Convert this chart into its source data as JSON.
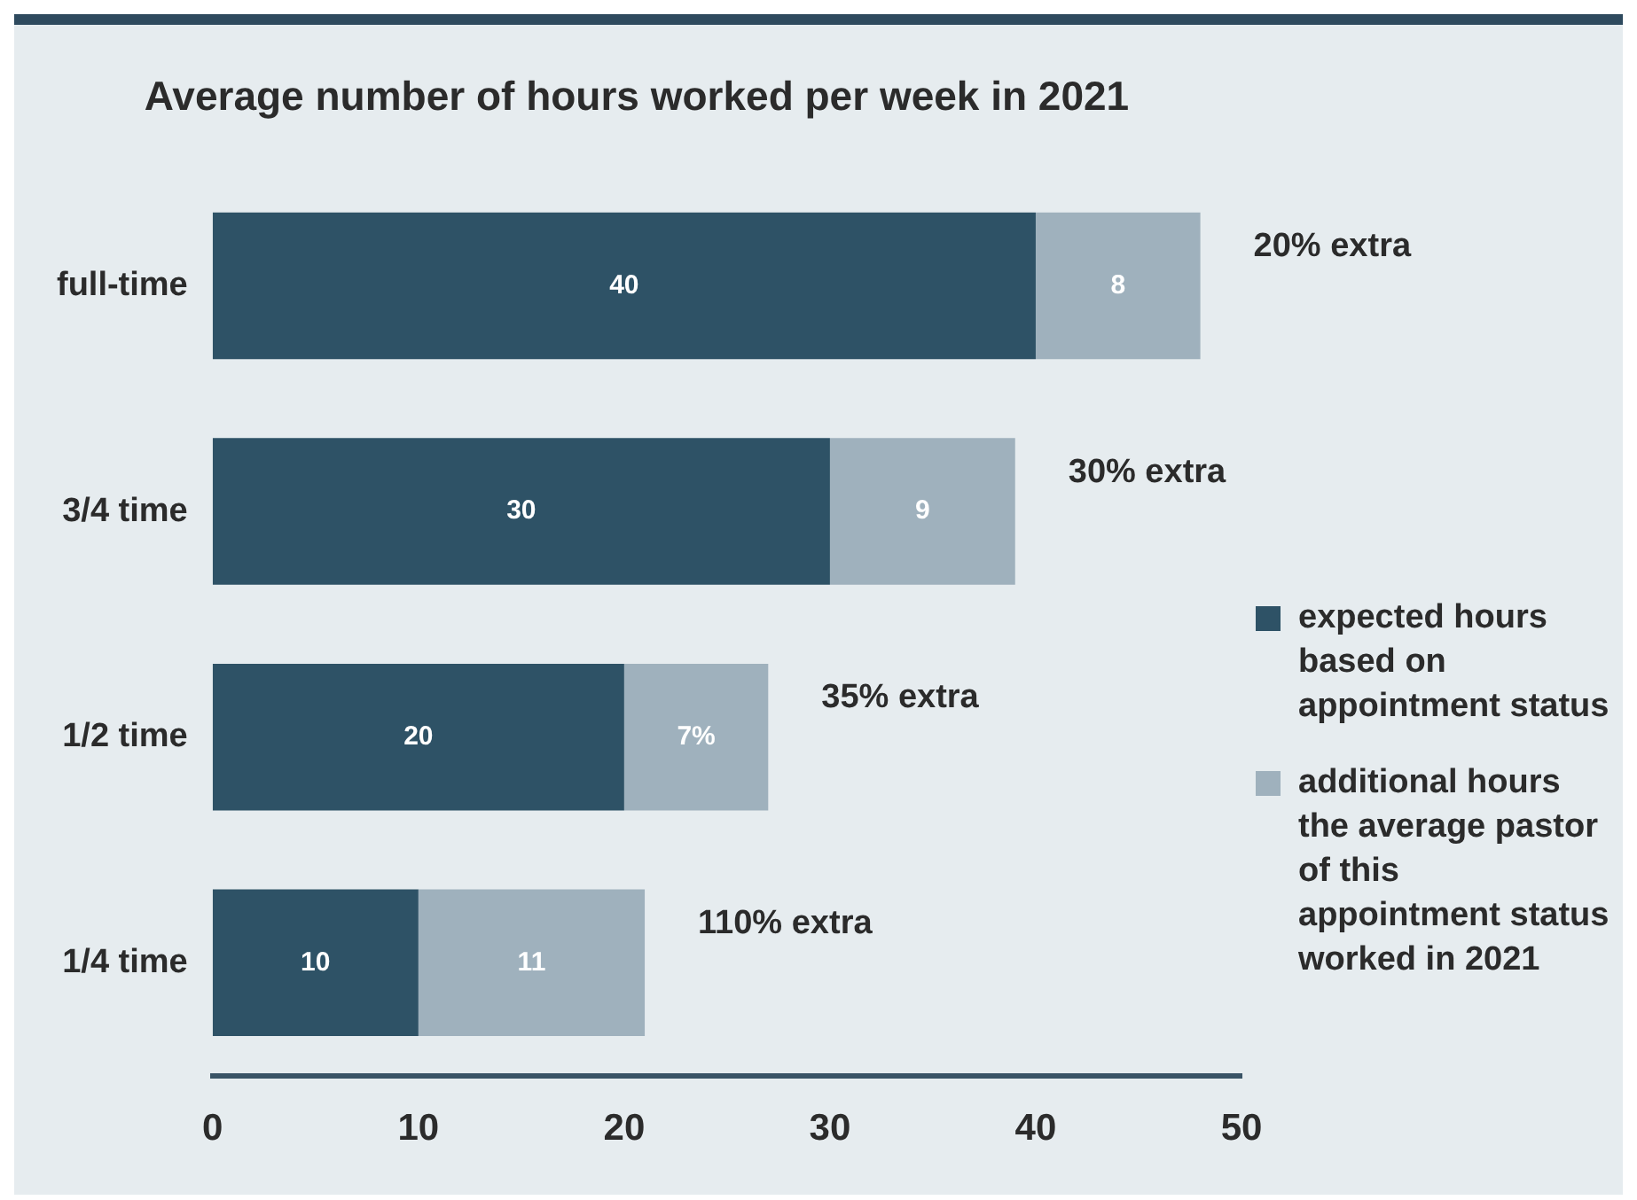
{
  "chart_data": {
    "type": "bar",
    "orientation": "horizontal",
    "stacked": true,
    "title": "Average number of hours worked per week in 2021",
    "categories": [
      "full-time",
      "3/4 time",
      "1/2 time",
      "1/4 time"
    ],
    "series": [
      {
        "name": "expected hours based on appointment status",
        "color": "#2e5266",
        "values": [
          40,
          30,
          20,
          10
        ],
        "value_labels": [
          "40",
          "30",
          "20",
          "10"
        ]
      },
      {
        "name": "additional hours the average pastor of this appointment status worked in 2021",
        "color": "#9fb1bd",
        "values": [
          8,
          9,
          7,
          11
        ],
        "value_labels": [
          "8",
          "9",
          "7%",
          "11"
        ]
      }
    ],
    "xlim": [
      0,
      50
    ],
    "xticks": [
      0,
      10,
      20,
      30,
      40,
      50
    ],
    "grid": false,
    "legend": "right",
    "annotations": [
      {
        "text": "20% extra",
        "x": 48,
        "y": "full-time"
      },
      {
        "text": "30% extra",
        "x": 39,
        "y": "3/4 time"
      },
      {
        "text": "35% extra",
        "x": 27,
        "y": "1/2 time"
      },
      {
        "text": "110% extra",
        "x": 21,
        "y": "1/4 time"
      }
    ]
  }
}
